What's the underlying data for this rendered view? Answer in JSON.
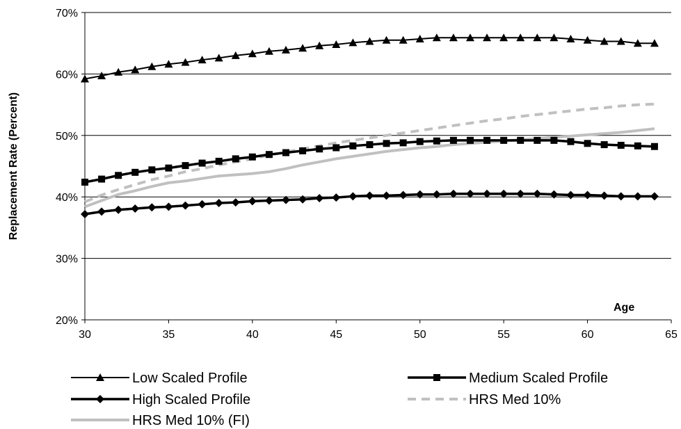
{
  "chart_data": {
    "type": "line",
    "title": "",
    "xlabel": "Age",
    "ylabel": "Replacement Rate (Percent)",
    "xlim": [
      30,
      65
    ],
    "ylim": [
      20,
      70
    ],
    "x_ticks": [
      "30",
      "35",
      "40",
      "45",
      "50",
      "55",
      "60",
      "65"
    ],
    "x_tick_values": [
      30,
      35,
      40,
      45,
      50,
      55,
      60,
      65
    ],
    "y_ticks": [
      "20%",
      "30%",
      "40%",
      "50%",
      "60%",
      "70%"
    ],
    "y_tick_values": [
      20,
      30,
      40,
      50,
      60,
      70
    ],
    "grid": "horizontal",
    "legend_position": "bottom",
    "x": [
      30,
      31,
      32,
      33,
      34,
      35,
      36,
      37,
      38,
      39,
      40,
      41,
      42,
      43,
      44,
      45,
      46,
      47,
      48,
      49,
      50,
      51,
      52,
      53,
      54,
      55,
      56,
      57,
      58,
      59,
      60,
      61,
      62,
      63,
      64
    ],
    "series": [
      {
        "name": "Low Scaled Profile",
        "color": "#000000",
        "style": "solid",
        "marker": "triangle",
        "values": [
          59.2,
          59.7,
          60.3,
          60.7,
          61.2,
          61.6,
          61.9,
          62.3,
          62.6,
          63.0,
          63.3,
          63.7,
          63.9,
          64.2,
          64.6,
          64.8,
          65.1,
          65.3,
          65.5,
          65.5,
          65.7,
          65.9,
          65.9,
          65.9,
          65.9,
          65.9,
          65.9,
          65.9,
          65.9,
          65.7,
          65.5,
          65.3,
          65.3,
          65.0,
          65.0
        ]
      },
      {
        "name": "Medium Scaled Profile",
        "color": "#000000",
        "style": "solid",
        "marker": "square",
        "values": [
          42.4,
          42.9,
          43.5,
          44.0,
          44.4,
          44.7,
          45.1,
          45.5,
          45.8,
          46.2,
          46.5,
          46.9,
          47.2,
          47.5,
          47.8,
          48.0,
          48.3,
          48.5,
          48.7,
          48.8,
          49.0,
          49.1,
          49.2,
          49.2,
          49.2,
          49.2,
          49.2,
          49.2,
          49.2,
          49.0,
          48.7,
          48.5,
          48.4,
          48.3,
          48.2
        ]
      },
      {
        "name": "High Scaled Profile",
        "color": "#000000",
        "style": "solid",
        "marker": "diamond",
        "values": [
          37.2,
          37.6,
          37.9,
          38.1,
          38.3,
          38.4,
          38.6,
          38.8,
          39.0,
          39.1,
          39.3,
          39.4,
          39.5,
          39.6,
          39.8,
          39.9,
          40.1,
          40.2,
          40.2,
          40.3,
          40.4,
          40.4,
          40.5,
          40.5,
          40.5,
          40.5,
          40.5,
          40.5,
          40.4,
          40.3,
          40.3,
          40.2,
          40.1,
          40.1,
          40.1
        ]
      },
      {
        "name": "HRS Med 10%",
        "color": "#c0c0c0",
        "style": "dashed",
        "marker": "none",
        "values": [
          39.2,
          40.3,
          41.2,
          42.0,
          42.8,
          43.4,
          44.1,
          44.6,
          45.2,
          45.7,
          46.2,
          46.8,
          47.3,
          47.8,
          48.3,
          48.8,
          49.2,
          49.6,
          50.0,
          50.4,
          50.8,
          51.2,
          51.6,
          52.0,
          52.4,
          52.7,
          53.1,
          53.4,
          53.7,
          54.0,
          54.3,
          54.5,
          54.8,
          55.0,
          55.1
        ]
      },
      {
        "name": "HRS Med 10% (FI)",
        "color": "#c0c0c0",
        "style": "solid",
        "marker": "none",
        "values": [
          38.4,
          39.4,
          40.4,
          41.0,
          41.7,
          42.3,
          42.6,
          43.0,
          43.4,
          43.6,
          43.8,
          44.1,
          44.6,
          45.2,
          45.7,
          46.2,
          46.6,
          47.0,
          47.4,
          47.7,
          48.0,
          48.2,
          48.5,
          48.7,
          48.9,
          49.1,
          49.3,
          49.5,
          49.7,
          49.9,
          50.1,
          50.3,
          50.5,
          50.8,
          51.1
        ]
      }
    ]
  }
}
